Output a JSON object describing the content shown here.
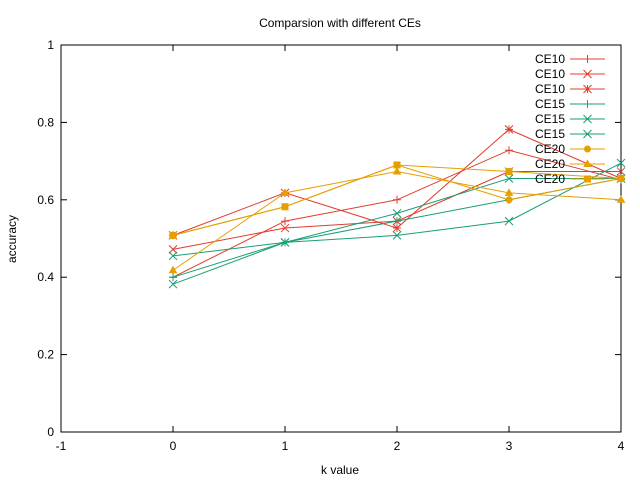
{
  "chart_data": {
    "type": "line",
    "title": "Comparsion with different CEs",
    "xlabel": "k value",
    "ylabel": "accuracy",
    "xlim": [
      -1,
      4
    ],
    "ylim": [
      0,
      1
    ],
    "xticks": [
      "-1",
      "0",
      "1",
      "2",
      "3",
      "4"
    ],
    "yticks": [
      "0",
      "0.2",
      "0.4",
      "0.6",
      "0.8",
      "1"
    ],
    "grid": false,
    "legend": "top-right, inside",
    "series": [
      {
        "name": "CE10",
        "color": "#e03c2c",
        "marker": "plus",
        "x": [
          0,
          1,
          2,
          3,
          4
        ],
        "y": [
          0.4,
          0.545,
          0.6,
          0.728,
          0.652
        ]
      },
      {
        "name": "CE10",
        "color": "#e03c2c",
        "marker": "cross",
        "x": [
          0,
          1,
          2,
          3,
          4
        ],
        "y": [
          0.472,
          0.527,
          0.545,
          0.673,
          0.673
        ]
      },
      {
        "name": "CE10",
        "color": "#e03c2c",
        "marker": "star",
        "x": [
          0,
          1,
          2,
          3,
          4
        ],
        "y": [
          0.508,
          0.618,
          0.527,
          0.782,
          0.655
        ]
      },
      {
        "name": "CE15",
        "color": "#1a9e77",
        "marker": "plus",
        "x": [
          0,
          1,
          2,
          3,
          4
        ],
        "y": [
          0.4,
          0.49,
          0.545,
          0.6,
          0.655
        ]
      },
      {
        "name": "CE15",
        "color": "#1a9e77",
        "marker": "cross",
        "x": [
          0,
          1,
          2,
          3,
          4
        ],
        "y": [
          0.455,
          0.49,
          0.508,
          0.545,
          0.695
        ]
      },
      {
        "name": "CE15",
        "color": "#1a9e77",
        "marker": "cross",
        "x": [
          0,
          1,
          2,
          3,
          4
        ],
        "y": [
          0.382,
          0.49,
          0.565,
          0.655,
          0.655
        ]
      },
      {
        "name": "CE20",
        "color": "#e69f00",
        "marker": "circle",
        "x": [
          0,
          1,
          2,
          3,
          4
        ],
        "y": [
          0.508,
          0.582,
          0.69,
          0.6,
          0.655
        ]
      },
      {
        "name": "CE20",
        "color": "#e69f00",
        "marker": "triangle",
        "x": [
          0,
          1,
          2,
          3,
          4
        ],
        "y": [
          0.418,
          0.618,
          0.673,
          0.618,
          0.6
        ]
      },
      {
        "name": "CE20",
        "color": "#e69f00",
        "marker": "square",
        "x": [
          0,
          1,
          2,
          3,
          4
        ],
        "y": [
          0.508,
          0.582,
          0.69,
          0.673,
          0.655
        ]
      }
    ]
  }
}
